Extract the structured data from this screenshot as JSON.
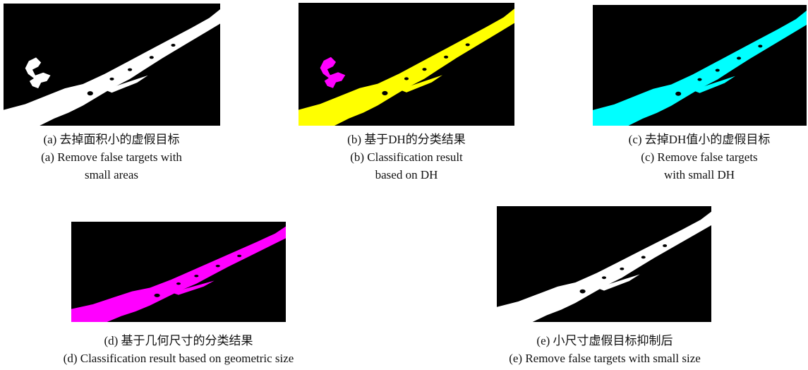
{
  "panels": [
    {
      "caption_zh": "(a) 去掉面积小的虚假目标",
      "caption_en": [
        "(a) Remove false targets with",
        "small areas"
      ]
    },
    {
      "caption_zh": "(b) 基于DH的分类结果",
      "caption_en": [
        "(b) Classification result",
        "based on DH"
      ]
    },
    {
      "caption_zh": "(c) 去掉DH值小的虚假目标",
      "caption_en": [
        "(c) Remove false targets",
        "with small DH"
      ]
    },
    {
      "caption_zh": "(d) 基于几何尺寸的分类结果",
      "caption_en": [
        "(d) Classification result based on geometric size"
      ]
    },
    {
      "caption_zh": "(e) 小尺寸虚假目标抑制后",
      "caption_en": [
        "(e) Remove false targets with small size"
      ]
    }
  ]
}
